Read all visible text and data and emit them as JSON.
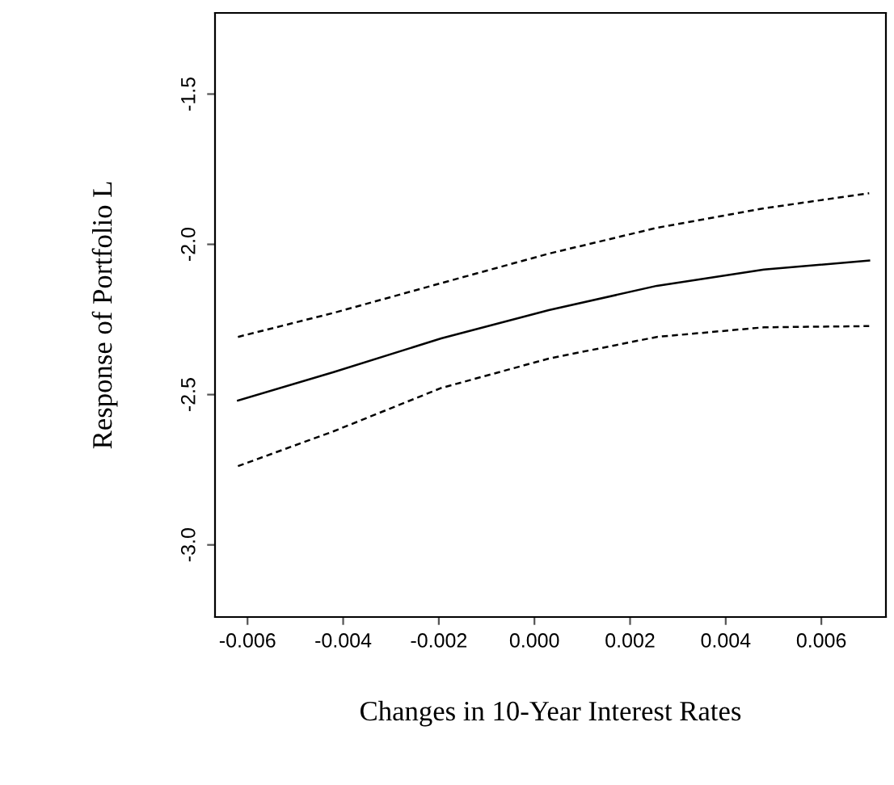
{
  "chart_data": {
    "type": "line",
    "xlabel": "Changes in 10-Year Interest Rates",
    "ylabel": "Response of Portfolio L",
    "xlim": [
      -0.00668,
      0.00735
    ],
    "ylim": [
      -3.24,
      -1.23
    ],
    "xticks": [
      -0.006,
      -0.004,
      -0.002,
      {
        "value": 0,
        "label": "0.000"
      },
      0.002,
      0.004,
      0.006
    ],
    "yticks": [
      {
        "value": -3,
        "label": "-3.0"
      },
      -2.5,
      {
        "value": -2,
        "label": "-2.0"
      },
      -1.5
    ],
    "grid": false,
    "legend": false,
    "marker": "none",
    "x": [
      -0.0062,
      -0.0042,
      -0.00195,
      0.0003,
      0.00256,
      0.0048,
      0.007
    ],
    "series": [
      {
        "color": "#000000",
        "line_style": "solid",
        "values": [
          -2.52,
          -2.425,
          -2.313,
          -2.219,
          -2.138,
          -2.084,
          -2.054
        ]
      },
      {
        "color": "#000000",
        "line_style": "dashed",
        "values": [
          -2.308,
          -2.228,
          -2.129,
          -2.031,
          -1.945,
          -1.88,
          -1.83
        ]
      },
      {
        "color": "#000000",
        "line_style": "dashed",
        "values": [
          -2.738,
          -2.622,
          -2.478,
          -2.38,
          -2.308,
          -2.276,
          -2.272
        ]
      }
    ]
  }
}
